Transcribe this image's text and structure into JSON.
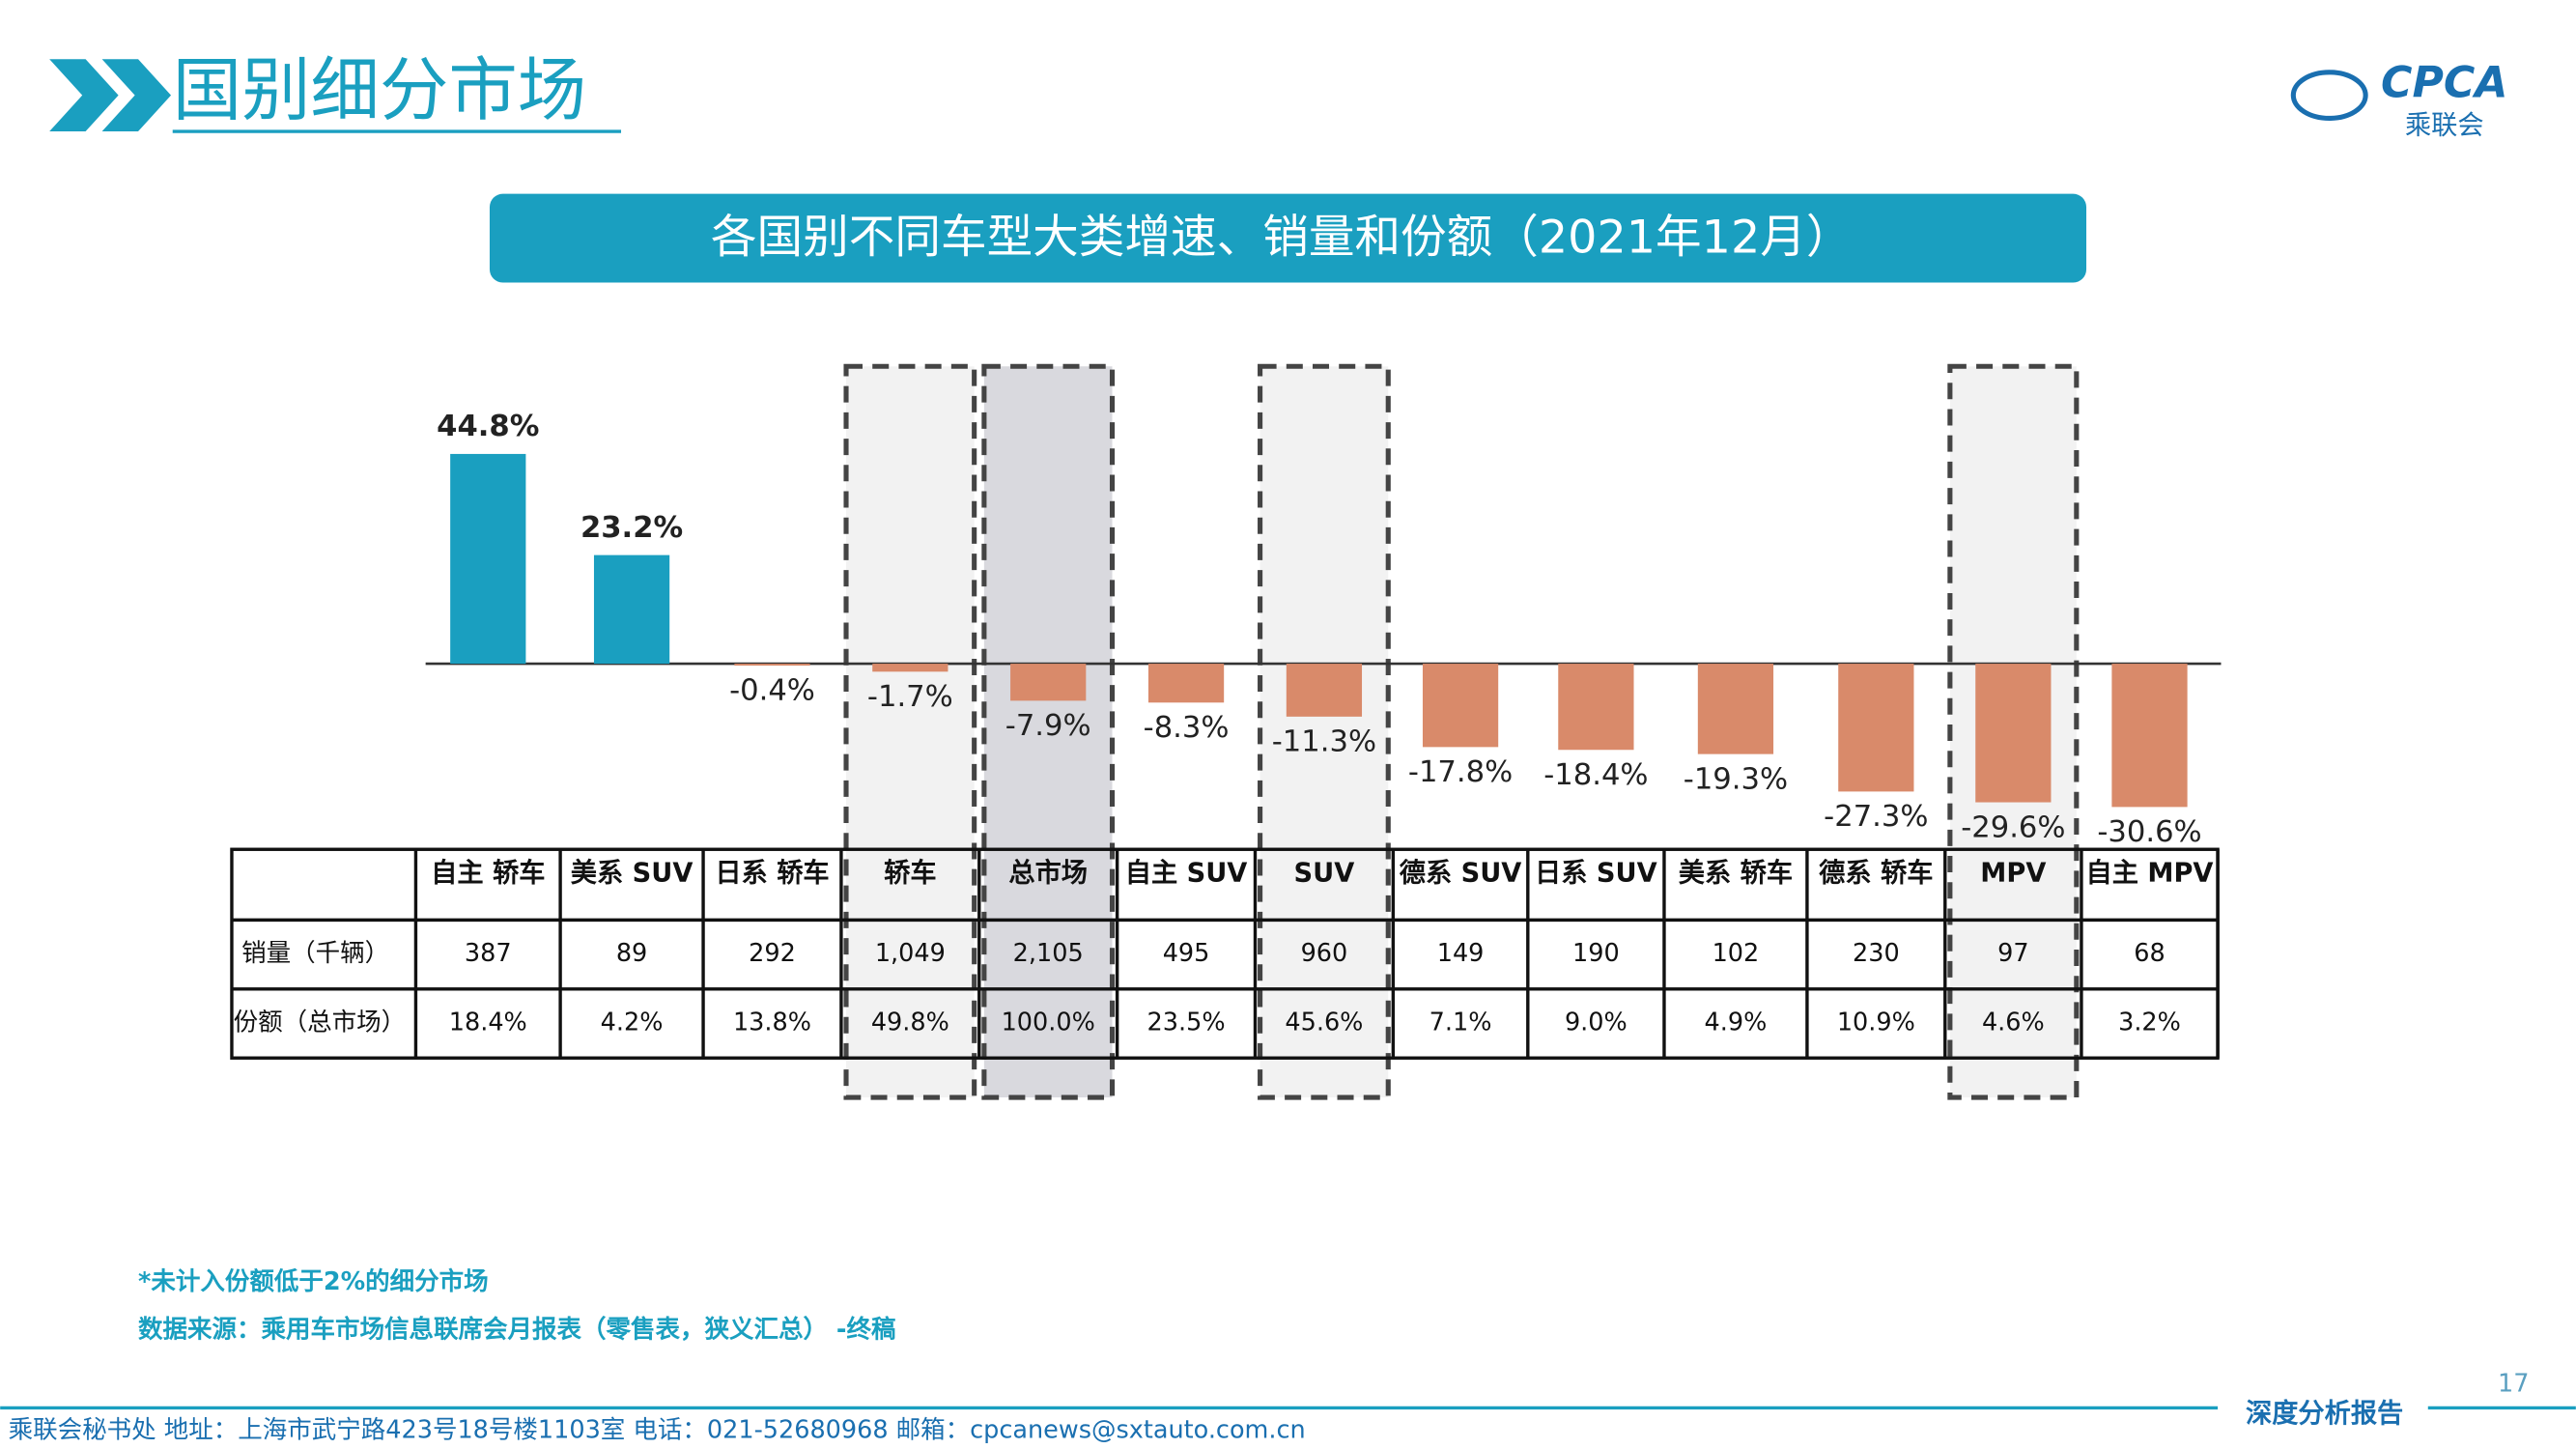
{
  "header": {
    "title": "国别细分市场",
    "logo_text": "CPCA",
    "logo_subtext": "乘联会"
  },
  "chart_data": {
    "type": "bar",
    "title": "各国别不同车型大类增速、销量和份额（2021年12月）",
    "categories": [
      "自主 轿车",
      "美系 SUV",
      "日系 轿车",
      "轿车",
      "总市场",
      "自主 SUV",
      "SUV",
      "德系 SUV",
      "日系 SUV",
      "美系 轿车",
      "德系 轿车",
      "MPV",
      "自主 MPV"
    ],
    "values": [
      44.8,
      23.2,
      -0.4,
      -1.7,
      -7.9,
      -8.3,
      -11.3,
      -17.8,
      -18.4,
      -19.3,
      -27.3,
      -29.6,
      -30.6
    ],
    "value_labels": [
      "44.8%",
      "23.2%",
      "-0.4%",
      "-1.7%",
      "-7.9%",
      "-8.3%",
      "-11.3%",
      "-17.8%",
      "-18.4%",
      "-19.3%",
      "-27.3%",
      "-29.6%",
      "-30.6%"
    ],
    "positive_color": "#1a9fc0",
    "negative_color": "#d98a6a"
  },
  "table": {
    "row_labels": [
      "销量（千辆）",
      "份额（总市场）"
    ],
    "sales": [
      "387",
      "89",
      "292",
      "1,049",
      "2,105",
      "495",
      "960",
      "149",
      "190",
      "102",
      "230",
      "97",
      "68"
    ],
    "shares": [
      "18.4%",
      "4.2%",
      "13.8%",
      "49.8%",
      "100.0%",
      "23.5%",
      "45.6%",
      "7.1%",
      "9.0%",
      "4.9%",
      "10.9%",
      "4.6%",
      "3.2%"
    ]
  },
  "notes": [
    "*未计入份额低于2%的细分市场",
    "数据来源：乘用车市场信息联席会月报表（零售表，狭义汇总） -终稿"
  ],
  "footer": {
    "contact": "乘联会秘书处   地址：上海市武宁路423号18号楼1103室  电话：021-52680968   邮箱：cpcanews@sxtauto.com.cn",
    "tag": "深度分析报告",
    "page": "17"
  }
}
